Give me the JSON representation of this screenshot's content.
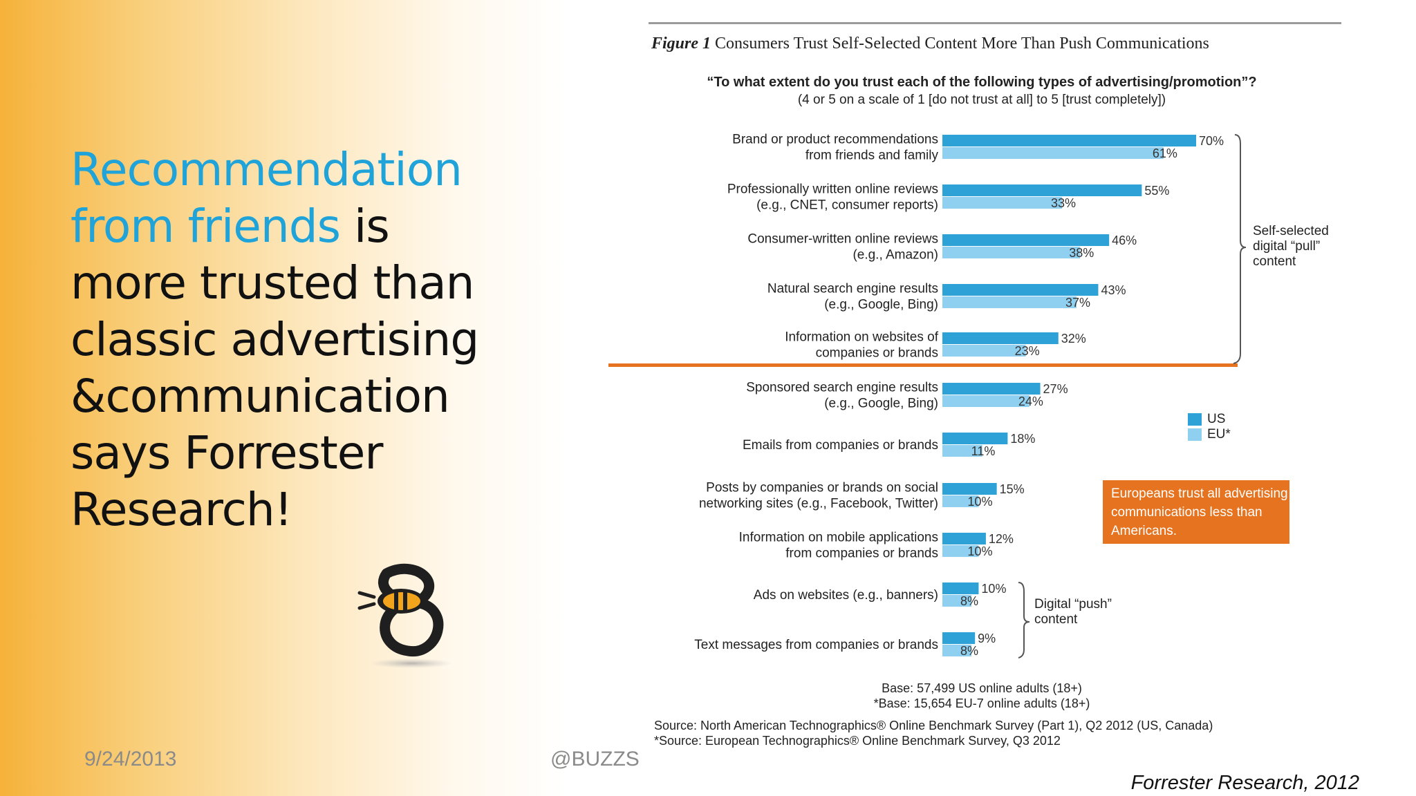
{
  "slide": {
    "headline_highlight": "Recommendation from friends",
    "headline_rest": " is more trusted than classic advertising &communication says Forrester Research!",
    "date": "9/24/2013",
    "handle": "@BUZZS",
    "citation": "Forrester Research, 2012"
  },
  "figure": {
    "label": "Figure 1",
    "title": "Consumers Trust Self-Selected Content More Than Push Communications",
    "question": "“To what extent do you trust each of the following types of advertising/promotion”?",
    "scale_note": "(4 or 5 on a scale of 1 [do not trust at all] to 5 [trust completely])",
    "pull_label": "Self-selected digital “pull” content",
    "push_label": "Digital “push” content",
    "callout": "Europeans trust all advertising communications less than Americans.",
    "base_us": "Base: 57,499 US online adults (18+)",
    "base_eu": "*Base: 15,654 EU-7 online adults (18+)",
    "source_us": "Source: North American Technographics® Online Benchmark Survey (Part 1), Q2 2012 (US, Canada)",
    "source_eu": "*Source: European Technographics® Online Benchmark Survey, Q3 2012"
  },
  "chart_data": {
    "type": "bar",
    "orientation": "horizontal",
    "categories": [
      [
        "Brand or product recommendations",
        "from friends and family"
      ],
      [
        "Professionally written online reviews",
        "(e.g., CNET, consumer reports)"
      ],
      [
        "Consumer-written online reviews",
        "(e.g., Amazon)"
      ],
      [
        "Natural search engine results",
        "(e.g., Google, Bing)"
      ],
      [
        "Information on websites of",
        "companies or brands"
      ],
      [
        "Sponsored search engine results",
        "(e.g., Google, Bing)"
      ],
      [
        "Emails from companies or brands"
      ],
      [
        "Posts by companies or brands on social",
        "networking sites (e.g., Facebook, Twitter)"
      ],
      [
        "Information on mobile applications",
        "from companies or brands"
      ],
      [
        "Ads on websites (e.g., banners)"
      ],
      [
        "Text messages from companies or brands"
      ]
    ],
    "series": [
      {
        "name": "US",
        "color": "#2ea2d6",
        "values": [
          70,
          55,
          46,
          43,
          32,
          27,
          18,
          15,
          12,
          10,
          9
        ]
      },
      {
        "name": "EU*",
        "color": "#8fd0f0",
        "values": [
          61,
          33,
          38,
          37,
          23,
          24,
          11,
          10,
          10,
          8,
          8
        ]
      }
    ],
    "value_suffix": "%",
    "xlim": [
      0,
      75
    ],
    "legend_position": "right",
    "highlight_divider_color": "#e5731f"
  }
}
